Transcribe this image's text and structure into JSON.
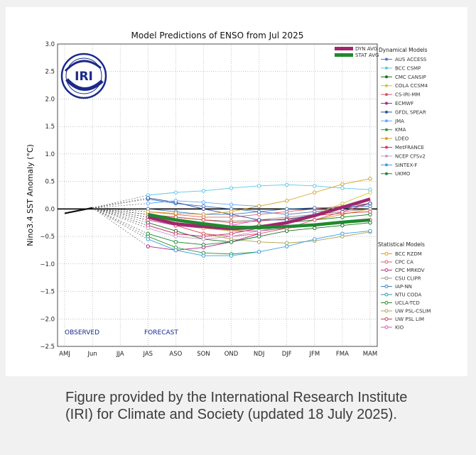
{
  "caption": "Figure provided by the International Research Institute (IRI) for Climate and Society (updated 18 July 2025).",
  "logo_text": "IRI",
  "chart_data": {
    "type": "line",
    "title": "Model Predictions of ENSO from Jul 2025",
    "ylabel": "Nino3.4 SST Anomaly (°C)",
    "xlabel": "",
    "categories": [
      "AMJ",
      "Jun",
      "JJA",
      "JAS",
      "ASO",
      "SON",
      "OND",
      "NDJ",
      "DJF",
      "JFM",
      "FMA",
      "MAM"
    ],
    "ylim": [
      -2.5,
      3.0
    ],
    "yticks": [
      "3.0",
      "2.5",
      "2.0",
      "1.5",
      "1.0",
      "0.5",
      "0.0",
      "−0.5",
      "−1.0",
      "−1.5",
      "−2.0",
      "−2.5"
    ],
    "grid": true,
    "observed_label": "OBSERVED",
    "forecast_label": "FORECAST",
    "observed": [
      -0.08,
      0.02
    ],
    "averages": [
      {
        "name": "DYN AVG",
        "color": "#a0266e",
        "values": [
          -0.15,
          -0.27,
          -0.32,
          -0.36,
          -0.33,
          -0.25,
          -0.12,
          0.03,
          0.18
        ]
      },
      {
        "name": "STAT AVG",
        "color": "#1e8a2e",
        "values": [
          -0.1,
          -0.2,
          -0.27,
          -0.33,
          -0.34,
          -0.32,
          -0.29,
          -0.24,
          -0.2
        ]
      }
    ],
    "legend_dynamical_title": "Dynamical Models",
    "legend_statistical_title": "Statistical Models",
    "dynamical": [
      {
        "name": "AUS ACCESS",
        "color": "#4a78c8",
        "values": [
          0.18,
          0.1,
          0.05,
          0.0,
          -0.05,
          -0.1,
          -0.05,
          0.0,
          0.1
        ]
      },
      {
        "name": "BCC CSMP",
        "color": "#5cc6e8",
        "values": [
          0.25,
          0.3,
          0.33,
          0.38,
          0.42,
          0.44,
          0.42,
          0.38,
          0.35
        ]
      },
      {
        "name": "CMC CANSIP",
        "color": "#1a6e1a",
        "values": [
          -0.25,
          -0.4,
          -0.55,
          -0.6,
          -0.5,
          -0.4,
          -0.35,
          -0.3,
          -0.25
        ]
      },
      {
        "name": "COLA CCSM4",
        "color": "#c8c83a",
        "values": [
          -0.1,
          -0.25,
          -0.35,
          -0.4,
          -0.35,
          -0.25,
          -0.1,
          0.1,
          0.3
        ]
      },
      {
        "name": "CS-IRI-MM",
        "color": "#e0506a",
        "values": [
          -0.15,
          -0.3,
          -0.45,
          -0.5,
          -0.45,
          -0.35,
          -0.2,
          -0.05,
          0.1
        ]
      },
      {
        "name": "ECMWF",
        "color": "#b0248a",
        "values": [
          -0.68,
          -0.75,
          -0.7,
          -0.6,
          -0.45
        ]
      },
      {
        "name": "GFDL SPEAR",
        "color": "#3050a0",
        "values": [
          0.2,
          0.12,
          0.0,
          -0.1,
          -0.2,
          -0.2,
          -0.1,
          0.0,
          0.1
        ]
      },
      {
        "name": "JMA",
        "color": "#60aaff",
        "values": [
          0.1,
          0.15,
          0.12,
          0.08,
          0.05
        ]
      },
      {
        "name": "KMA",
        "color": "#2e9a2e",
        "values": [
          -0.5,
          -0.7,
          -0.8,
          -0.82,
          -0.78
        ]
      },
      {
        "name": "LDEO",
        "color": "#d8a020",
        "values": [
          -0.05,
          -0.08,
          -0.1,
          -0.05,
          0.05,
          0.15,
          0.3,
          0.45,
          0.55
        ]
      },
      {
        "name": "MetFRANCE",
        "color": "#e03070",
        "values": [
          -0.3,
          -0.45,
          -0.5,
          -0.45,
          -0.35
        ]
      },
      {
        "name": "NCEP CFSv2",
        "color": "#c8a0c8",
        "values": [
          -0.35,
          -0.5,
          -0.55,
          -0.5,
          -0.4,
          -0.3
        ]
      },
      {
        "name": "SINTEX-F",
        "color": "#3aa0e0",
        "values": [
          -0.55,
          -0.75,
          -0.85,
          -0.85,
          -0.78,
          -0.68,
          -0.55,
          -0.45,
          -0.4
        ]
      },
      {
        "name": "UKMO",
        "color": "#1a8a3a",
        "values": [
          -0.45,
          -0.6,
          -0.65,
          -0.6,
          -0.5
        ]
      }
    ],
    "statistical": [
      {
        "name": "BCC RZDM",
        "color": "#e0a020",
        "values": [
          -0.1,
          -0.2,
          -0.3,
          -0.35,
          -0.3,
          -0.25,
          -0.2,
          -0.1,
          0.0
        ]
      },
      {
        "name": "CPC CA",
        "color": "#e06060",
        "values": [
          -0.05,
          -0.1,
          -0.15,
          -0.15,
          -0.1,
          -0.05,
          0.0,
          0.05,
          0.1
        ]
      },
      {
        "name": "CPC MRKOV",
        "color": "#c03080",
        "values": [
          -0.2,
          -0.3,
          -0.35,
          -0.4,
          -0.4,
          -0.35,
          -0.3,
          -0.25,
          -0.2
        ]
      },
      {
        "name": "CSU CLIPR",
        "color": "#909090",
        "values": [
          -0.1,
          -0.15,
          -0.2,
          -0.22,
          -0.2,
          -0.15,
          -0.1,
          -0.05,
          0.0
        ]
      },
      {
        "name": "IAP-NN",
        "color": "#4080c0",
        "values": [
          0.0,
          -0.05,
          -0.1,
          -0.1,
          -0.05,
          0.0,
          0.02,
          0.03,
          0.05
        ]
      },
      {
        "name": "NTU CODA",
        "color": "#20a0a0",
        "values": [
          -0.3,
          -0.45,
          -0.5,
          -0.45,
          -0.35,
          -0.25,
          -0.2,
          -0.15,
          -0.1
        ]
      },
      {
        "name": "UCLA-TCD",
        "color": "#2a8a2a",
        "values": [
          -0.2,
          -0.3,
          -0.35,
          -0.35,
          -0.3,
          -0.25,
          -0.2,
          -0.15,
          -0.1
        ]
      },
      {
        "name": "UW PSL-CSLIM",
        "color": "#b0a050",
        "values": [
          -0.15,
          -0.3,
          -0.45,
          -0.55,
          -0.6,
          -0.62,
          -0.58,
          -0.5,
          -0.42
        ]
      },
      {
        "name": "UW PSL LIM",
        "color": "#d04040",
        "values": [
          -0.1,
          -0.15,
          -0.2,
          -0.25,
          -0.22,
          -0.18,
          -0.12,
          -0.08,
          -0.05
        ]
      },
      {
        "name": "KIO",
        "color": "#e050c0",
        "values": [
          -0.2,
          -0.3,
          -0.35,
          -0.3,
          -0.2
        ]
      }
    ]
  }
}
